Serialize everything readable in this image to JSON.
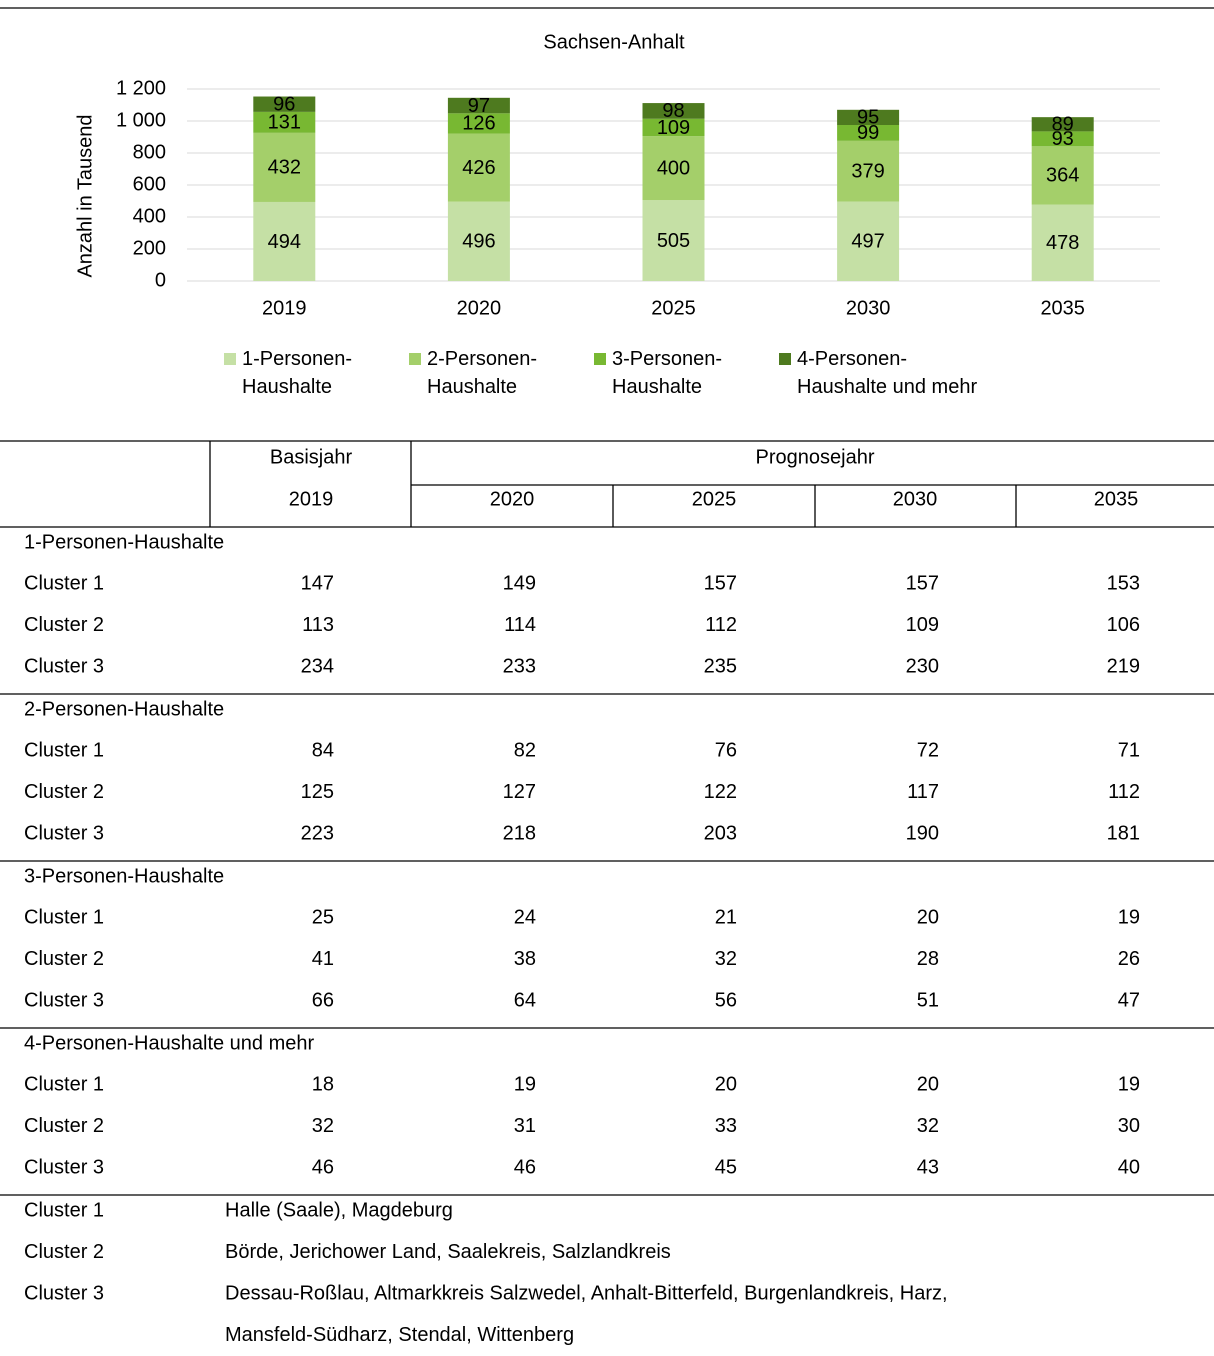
{
  "chart_data": {
    "type": "stacked_bar",
    "title": "Sachsen-Anhalt",
    "y_label": "Anzahl in Tausend",
    "categories": [
      "2019",
      "2020",
      "2025",
      "2030",
      "2035"
    ],
    "series": [
      {
        "name": "1-Personen-Haushalte",
        "color": "#c5e0a5",
        "values": [
          494,
          496,
          505,
          497,
          478
        ]
      },
      {
        "name": "2-Personen-Haushalte",
        "color": "#a4cf6a",
        "values": [
          432,
          426,
          400,
          379,
          364
        ]
      },
      {
        "name": "3-Personen-Haushalte",
        "color": "#78b832",
        "values": [
          131,
          126,
          109,
          99,
          93
        ]
      },
      {
        "name": "4-Personen-Haushalte und mehr",
        "color": "#4e7a1f",
        "values": [
          96,
          97,
          98,
          95,
          89
        ]
      }
    ],
    "ylim": [
      0,
      1200
    ],
    "yticks": [
      0,
      200,
      400,
      600,
      800,
      {
        "value": 1000,
        "label": "1 000"
      },
      {
        "value": 1200,
        "label": "1 200"
      }
    ],
    "grid": true,
    "legend": "bottom"
  },
  "table": {
    "header": {
      "base": "Basisjahr",
      "forecast": "Prognosejahr",
      "years": [
        "2019",
        "2020",
        "2025",
        "2030",
        "2035"
      ]
    },
    "groups": [
      {
        "label": "1-Personen-Haushalte",
        "rows": [
          {
            "label": "Cluster 1",
            "values": [
              147,
              149,
              157,
              157,
              153
            ]
          },
          {
            "label": "Cluster 2",
            "values": [
              113,
              114,
              112,
              109,
              106
            ]
          },
          {
            "label": "Cluster 3",
            "values": [
              234,
              233,
              235,
              230,
              219
            ]
          }
        ]
      },
      {
        "label": "2-Personen-Haushalte",
        "rows": [
          {
            "label": "Cluster 1",
            "values": [
              84,
              82,
              76,
              72,
              71
            ]
          },
          {
            "label": "Cluster 2",
            "values": [
              125,
              127,
              122,
              117,
              112
            ]
          },
          {
            "label": "Cluster 3",
            "values": [
              223,
              218,
              203,
              190,
              181
            ]
          }
        ]
      },
      {
        "label": "3-Personen-Haushalte",
        "rows": [
          {
            "label": "Cluster 1",
            "values": [
              25,
              24,
              21,
              20,
              19
            ]
          },
          {
            "label": "Cluster 2",
            "values": [
              41,
              38,
              32,
              28,
              26
            ]
          },
          {
            "label": "Cluster 3",
            "values": [
              66,
              64,
              56,
              51,
              47
            ]
          }
        ]
      },
      {
        "label": "4-Personen-Haushalte und mehr",
        "rows": [
          {
            "label": "Cluster 1",
            "values": [
              18,
              19,
              20,
              20,
              19
            ]
          },
          {
            "label": "Cluster 2",
            "values": [
              32,
              31,
              33,
              32,
              30
            ]
          },
          {
            "label": "Cluster 3",
            "values": [
              46,
              46,
              45,
              43,
              40
            ]
          }
        ]
      }
    ]
  },
  "clusters": [
    {
      "label": "Cluster 1",
      "lines": [
        "Halle (Saale), Magdeburg"
      ]
    },
    {
      "label": "Cluster 2",
      "lines": [
        "Börde, Jerichower Land, Saalekreis, Salzlandkreis"
      ]
    },
    {
      "label": "Cluster 3",
      "lines": [
        "Dessau-Roßlau, Altmarkkreis Salzwedel, Anhalt-Bitterfeld, Burgenlandkreis, Harz,",
        "Mansfeld-Südharz, Stendal, Wittenberg"
      ]
    }
  ]
}
